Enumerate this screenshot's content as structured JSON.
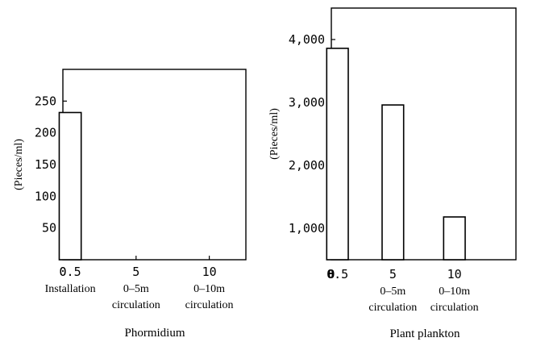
{
  "chart_data": [
    {
      "type": "bar",
      "title": "Phormidium",
      "ylabel": "(Pieces/ml)",
      "xlabel": "",
      "ylim": [
        0,
        300
      ],
      "yticks": [
        50,
        100,
        150,
        200,
        250
      ],
      "ytick_labels": [
        "50",
        "100",
        "150",
        "200",
        "250"
      ],
      "xlim": [
        0,
        12.5
      ],
      "xticks": [
        0,
        0.5,
        5,
        10
      ],
      "xtick_labels": [
        "0",
        "0.5",
        "5",
        "10"
      ],
      "x": [
        0.5
      ],
      "values": [
        232
      ],
      "bar_width": 1.5,
      "category_labels": [
        {
          "x": 0.5,
          "lines": [
            "Installation"
          ]
        },
        {
          "x": 5,
          "lines": [
            "0–5m",
            "circulation"
          ]
        },
        {
          "x": 10,
          "lines": [
            "0–10m",
            "circulation"
          ]
        }
      ],
      "grid": false,
      "frame": "box"
    },
    {
      "type": "bar",
      "title": "Plant plankton",
      "ylabel": "(Pieces/ml)",
      "xlabel": "",
      "ylim": [
        500,
        4500
      ],
      "yticks": [
        1000,
        2000,
        3000,
        4000
      ],
      "ytick_labels": [
        "1,000",
        "2,000",
        "3,000",
        "4,000"
      ],
      "xlim": [
        0,
        15
      ],
      "xticks": [
        0,
        0.5,
        5,
        10
      ],
      "xtick_labels": [
        "0",
        "0.5",
        "5",
        "10"
      ],
      "x": [
        0.5,
        5,
        10
      ],
      "values": [
        3860,
        2960,
        1180
      ],
      "bar_width": 1.75,
      "category_labels": [
        {
          "x": 5,
          "lines": [
            "0–5m",
            "circulation"
          ]
        },
        {
          "x": 10,
          "lines": [
            "0–10m",
            "circulation"
          ]
        }
      ],
      "grid": false,
      "frame": "box"
    }
  ]
}
